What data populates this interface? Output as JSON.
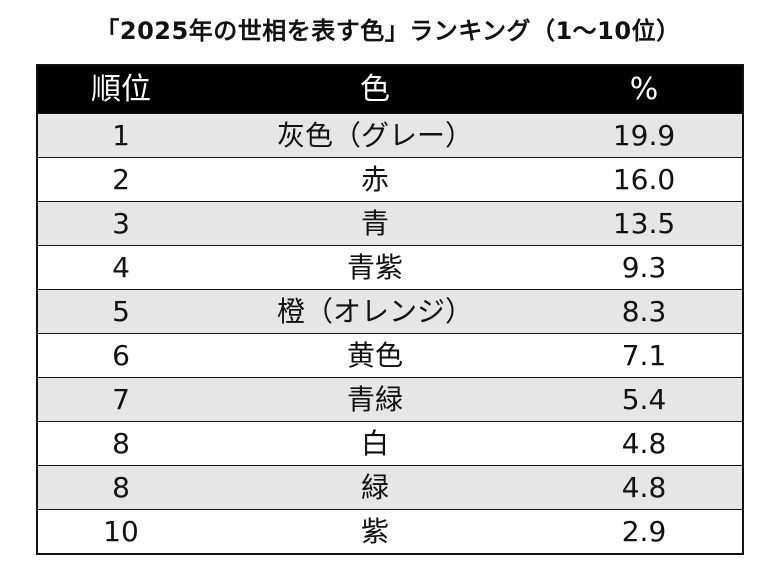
{
  "title": "「2025年の世相を表す色」ランキング（1〜10位）",
  "table": {
    "headers": [
      "順位",
      "色",
      "%"
    ],
    "rows": [
      {
        "rank": "1",
        "color": "灰色（グレー）",
        "percent": "19.9"
      },
      {
        "rank": "2",
        "color": "赤",
        "percent": "16.0"
      },
      {
        "rank": "3",
        "color": "青",
        "percent": "13.5"
      },
      {
        "rank": "4",
        "color": "青紫",
        "percent": "9.3"
      },
      {
        "rank": "5",
        "color": "橙（オレンジ）",
        "percent": "8.3"
      },
      {
        "rank": "6",
        "color": "黄色",
        "percent": "7.1"
      },
      {
        "rank": "7",
        "color": "青緑",
        "percent": "5.4"
      },
      {
        "rank": "8",
        "color": "白",
        "percent": "4.8"
      },
      {
        "rank": "8",
        "color": "緑",
        "percent": "4.8"
      },
      {
        "rank": "10",
        "color": "紫",
        "percent": "2.9"
      }
    ]
  },
  "colors": {
    "header_background": "#000000",
    "header_text": "#ffffff",
    "shaded_row": "#e6e6e6",
    "plain_row": "#ffffff"
  }
}
